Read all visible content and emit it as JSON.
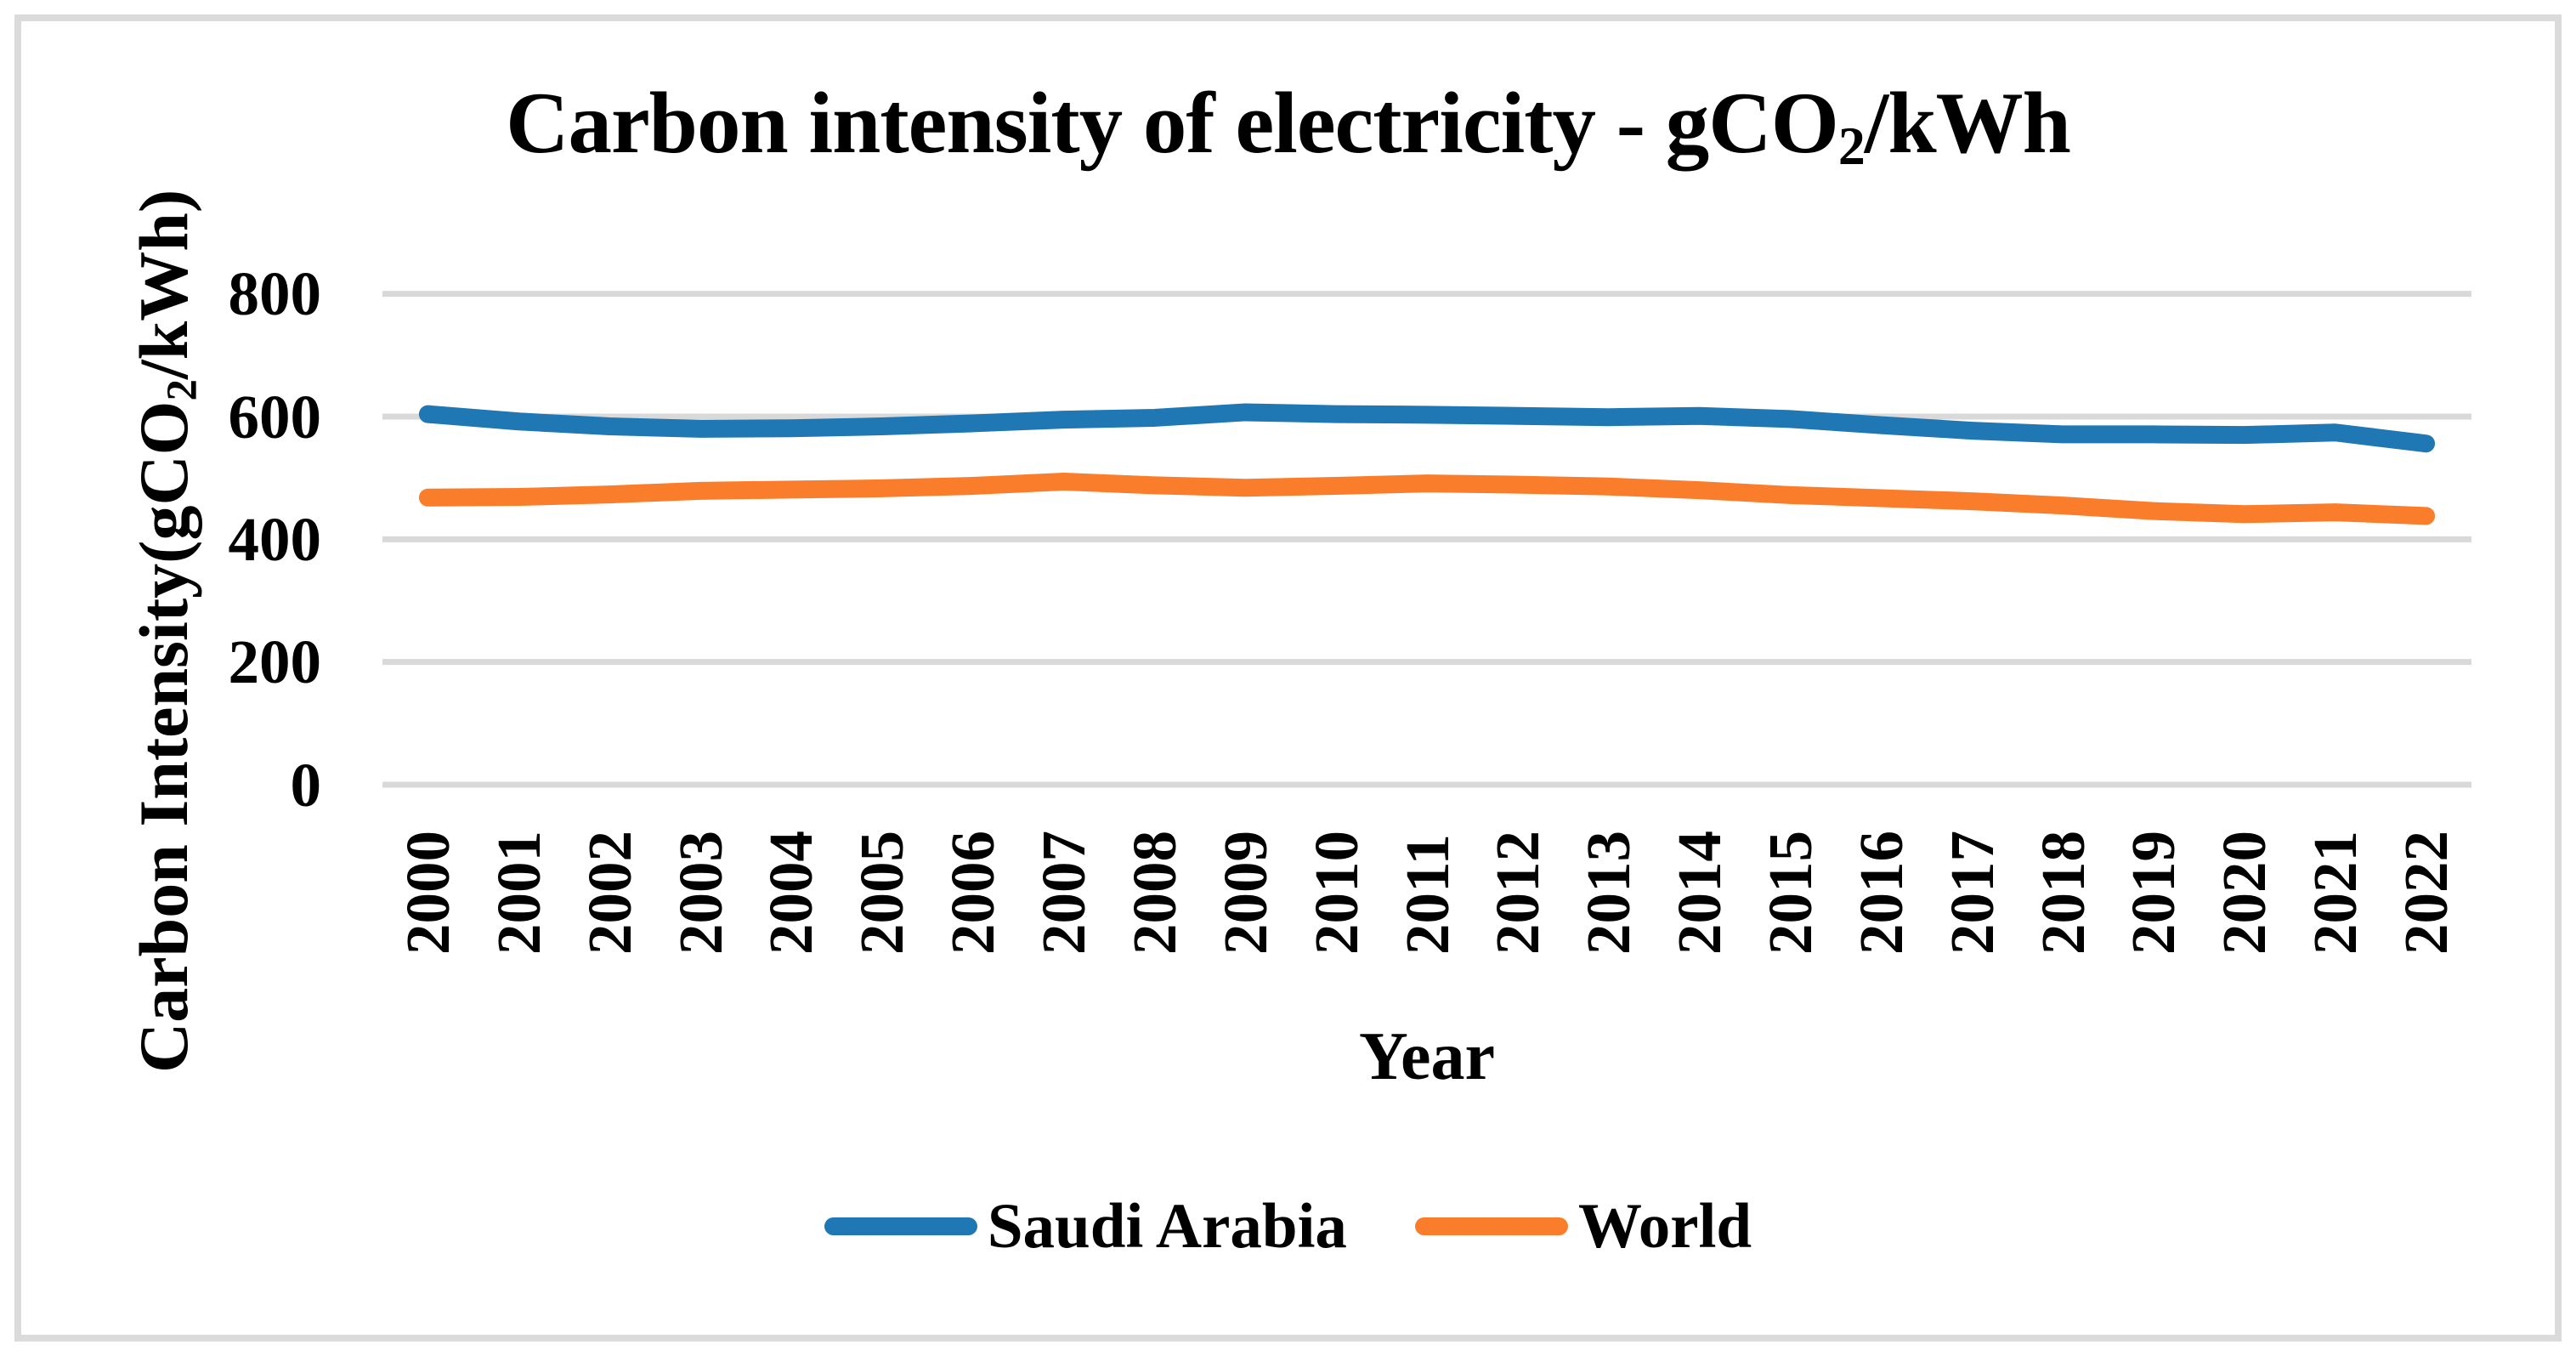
{
  "title": {
    "prefix": "Carbon intensity of electricity - gCO",
    "subscript": "2",
    "suffix": "/kWh"
  },
  "y_axis": {
    "title_prefix": "Carbon Intensity(gCO",
    "title_subscript": "2",
    "title_suffix": "/kWh)"
  },
  "x_axis": {
    "title": "Year"
  },
  "chart_data": {
    "type": "line",
    "title": "Carbon intensity of electricity - gCO2/kWh",
    "xlabel": "Year",
    "ylabel": "Carbon Intensity(gCO2/kWh)",
    "x": [
      2000,
      2001,
      2002,
      2003,
      2004,
      2005,
      2006,
      2007,
      2008,
      2009,
      2010,
      2011,
      2012,
      2013,
      2014,
      2015,
      2016,
      2017,
      2018,
      2019,
      2020,
      2021,
      2022
    ],
    "series": [
      {
        "name": "Saudi Arabia",
        "color": "#1F77B4",
        "values": [
          604,
          592,
          584,
          580,
          581,
          584,
          589,
          595,
          598,
          607,
          604,
          603,
          601,
          599,
          601,
          596,
          586,
          577,
          571,
          571,
          570,
          574,
          556
        ]
      },
      {
        "name": "World",
        "color": "#F97D2B",
        "values": [
          468,
          469,
          473,
          479,
          481,
          483,
          487,
          494,
          488,
          484,
          487,
          491,
          489,
          486,
          480,
          472,
          467,
          462,
          455,
          446,
          441,
          444,
          438
        ]
      }
    ],
    "ylim": [
      0,
      800
    ],
    "yticks": [
      0,
      200,
      400,
      600,
      800
    ],
    "grid": true,
    "grid_color": "#D9D9D9",
    "legend_position": "bottom"
  }
}
